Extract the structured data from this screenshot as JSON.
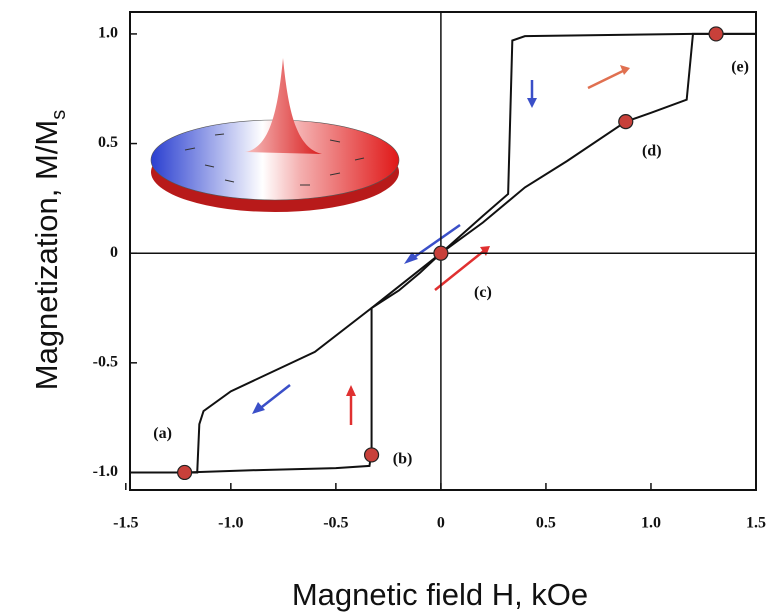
{
  "chart_data": {
    "type": "line",
    "xlabel": "Magnetic field H, kOe",
    "ylabel": "Magnetization, M/M",
    "ylabel_subscript": "s",
    "xlim": [
      -1.48,
      1.5
    ],
    "ylim": [
      -1.08,
      1.1
    ],
    "xticks": [
      -1.5,
      {
        "value": -1,
        "label": "-1.0"
      },
      -0.5,
      0,
      0.5,
      {
        "value": 1,
        "label": "1.0"
      },
      1.5
    ],
    "yticks": [
      {
        "value": 1,
        "label": "1.0"
      },
      0.5,
      0,
      -0.5,
      {
        "value": -1,
        "label": "-1.0"
      }
    ],
    "series": [
      {
        "color": "#111111",
        "x": [
          -1.48,
          -1.22,
          -0.9,
          -0.5,
          -0.34,
          -0.33,
          -0.33,
          -0.2,
          -0.1,
          0,
          0.2,
          0.4,
          0.6,
          0.88,
          1.0,
          1.17,
          1.19,
          1.2,
          1.5
        ],
        "values": [
          -1.0,
          -1.0,
          -0.99,
          -0.98,
          -0.97,
          -0.9,
          -0.25,
          -0.17,
          -0.09,
          0,
          0.14,
          0.3,
          0.42,
          0.6,
          0.64,
          0.7,
          0.9,
          1.0,
          1.0
        ]
      },
      {
        "color": "#111111",
        "x": [
          1.5,
          1.2,
          0.4,
          0.34,
          0.32,
          0.2,
          0,
          -0.33,
          -0.6,
          -1.0,
          -1.13,
          -1.15,
          -1.16,
          -1.48
        ],
        "values": [
          1.0,
          1.0,
          0.99,
          0.97,
          0.27,
          0.17,
          0,
          -0.25,
          -0.45,
          -0.63,
          -0.72,
          -0.78,
          -1.0,
          -1.0
        ]
      }
    ],
    "points": {
      "color": "#c8403a",
      "x": [
        -1.22,
        -0.33,
        0,
        0.88,
        1.31
      ],
      "y": [
        -1.0,
        -0.92,
        0,
        0.6,
        1.0
      ],
      "labels": [
        "(a)",
        "(b)",
        "(c)",
        "(d)",
        "(e)"
      ]
    }
  }
}
